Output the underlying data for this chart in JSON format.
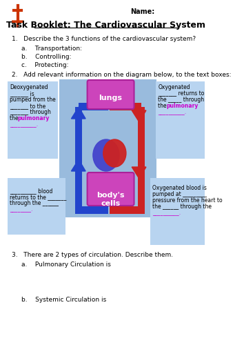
{
  "title": "Task Booklet: The Cardiovascular System",
  "name_label": "Name:",
  "bg_color": "#ffffff",
  "box_blue_light": "#b8d4f0",
  "central_blue": "#99bbdd",
  "arrow_blue": "#2244cc",
  "arrow_red": "#cc2222",
  "lungs_color": "#cc44bb",
  "lungs_edge": "#aa2299",
  "heart_left": "#4444cc",
  "heart_right": "#cc2222",
  "pink_text": "#cc00cc",
  "q1_text": "1.   Describe the 3 functions of the cardiovascular system?",
  "q1a": "a.    Transportation:",
  "q1b": "b.    Controlling:",
  "q1c": "c.    Protecting:",
  "q2_text": "2.   Add relevant information on the diagram below, to the text boxes:",
  "q3_text": "3.   There are 2 types of circulation. Describe them.",
  "q3a": "a.    Pulmonary Circulation is",
  "q3b": "b.    Systemic Circulation is",
  "lungs_label": "lungs",
  "body_label": "body's\ncells"
}
